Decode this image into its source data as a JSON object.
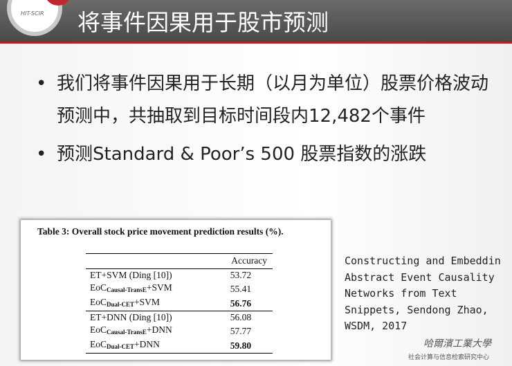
{
  "header": {
    "logo": "HIT-SCIR",
    "title": "将事件因果用于股市预测"
  },
  "bullets": [
    "我们将事件因果用于长期（以月为单位）股票价格波动预测中，共抽取到目标时间段内12,482个事件",
    "预测Standard & Poor’s 500 股票指数的涨跌"
  ],
  "table": {
    "caption": "Table 3: Overall stock price movement prediction results (%).",
    "header": "Accuracy",
    "rows": [
      {
        "method": [
          "ET+SVM (Ding [10])"
        ],
        "accuracy": "53.72",
        "bold": false
      },
      {
        "method": [
          "EoC",
          "Causal-TransE",
          "+SVM"
        ],
        "accuracy": "55.41",
        "bold": false
      },
      {
        "method": [
          "EoC",
          "Dual-CET",
          "+SVM"
        ],
        "accuracy": "56.76",
        "bold": true
      },
      {
        "method": [
          "ET+DNN (Ding [10])"
        ],
        "accuracy": "56.08",
        "bold": false
      },
      {
        "method": [
          "EoC",
          "Causal-TransE",
          "+DNN"
        ],
        "accuracy": "57.77",
        "bold": false
      },
      {
        "method": [
          "EoC",
          "Dual-CET",
          "+DNN"
        ],
        "accuracy": "59.80",
        "bold": true
      }
    ]
  },
  "reference": [
    "Constructing and Embeddin",
    "Abstract Event Causality",
    "Networks from Text",
    "Snippets, Sendong Zhao,",
    "WSDM, 2017"
  ],
  "footer": {
    "university": "哈爾濱工業大學",
    "center": "社会计算与信息检索研究中心"
  }
}
